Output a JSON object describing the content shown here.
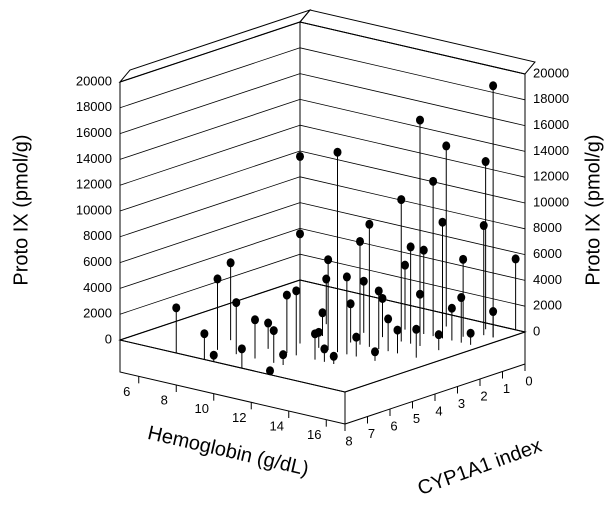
{
  "chart_data": {
    "type": "scatter3d",
    "xlabel": "Hemoglobin (g/dL)",
    "ylabel": "CYP1A1 index",
    "zlabel": "Proto IX (pmol/g)",
    "xlim": [
      5,
      17
    ],
    "ylim": [
      0,
      8
    ],
    "zlim": [
      0,
      20000
    ],
    "xticks": [
      6,
      8,
      10,
      12,
      14,
      16
    ],
    "yticks": [
      0,
      1,
      2,
      3,
      4,
      5,
      6,
      7,
      8
    ],
    "zticks": [
      0,
      2000,
      4000,
      6000,
      8000,
      10000,
      12000,
      14000,
      16000,
      18000,
      20000
    ],
    "color": "#000000",
    "x": [
      16.5,
      15,
      13,
      11,
      14,
      15.5,
      11,
      14.5,
      14,
      13.5,
      15,
      16,
      13,
      14.5,
      12.5,
      14,
      15.5,
      16.5,
      13.5,
      12,
      11.5,
      14,
      15,
      16,
      13,
      12.5,
      14.5,
      15.5,
      16.5,
      13,
      12,
      11,
      10,
      9,
      8.5,
      10.5,
      14,
      15,
      16,
      13.5,
      12.5,
      11.5,
      9.5,
      8,
      10,
      13,
      15,
      16.5,
      14,
      12,
      11,
      10,
      13,
      12,
      16
    ],
    "y": [
      1,
      3,
      5,
      5,
      1,
      0.5,
      5,
      2,
      3,
      4,
      2,
      1,
      4,
      3,
      5,
      2,
      1.5,
      0,
      5,
      6,
      6,
      4,
      3,
      2,
      3,
      4,
      4,
      2,
      1,
      6,
      7,
      7,
      7,
      7,
      6,
      6,
      5,
      4,
      3,
      6,
      7,
      8,
      8,
      8,
      8,
      8,
      5,
      2,
      6,
      5,
      4,
      3,
      2,
      3,
      4
    ],
    "z": [
      19500,
      17500,
      15500,
      14500,
      14000,
      13000,
      8500,
      12000,
      11000,
      9500,
      9000,
      8500,
      8000,
      7500,
      7000,
      6500,
      6000,
      5500,
      6000,
      5000,
      4500,
      4500,
      4000,
      3500,
      3000,
      3000,
      2500,
      2500,
      2000,
      2000,
      2500,
      3000,
      4000,
      5500,
      6000,
      2000,
      1500,
      1800,
      1200,
      1000,
      800,
      1500,
      2000,
      3500,
      500,
      300,
      700,
      900,
      600,
      1200,
      1800,
      3500,
      5000,
      4000,
      2200
    ]
  }
}
